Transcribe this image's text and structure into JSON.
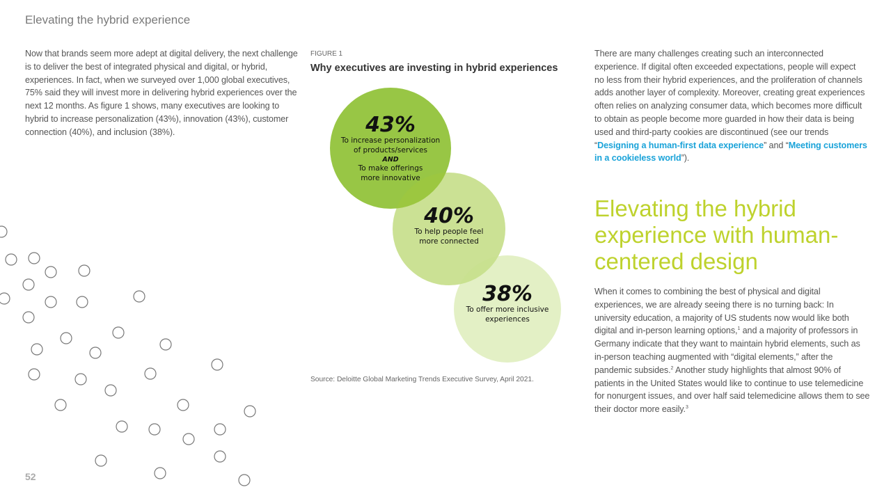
{
  "header": {
    "title": "Elevating the hybrid experience"
  },
  "left_column": {
    "paragraph": "Now that brands seem more adept at digital delivery, the next challenge is to deliver the best of integrated physical and digital, or hybrid, experiences. In fact, when we surveyed over 1,000 global executives, 75% said they will invest more in delivering hybrid experiences over the next 12 months. As figure 1 shows, many executives are looking to hybrid to increase personalization (43%), innovation (43%), customer connection (40%), and inclusion (38%)."
  },
  "figure": {
    "label": "FIGURE 1",
    "title": "Why executives are investing in hybrid experiences",
    "source": "Source: Deloitte Global Marketing Trends Executive Survey, April 2021.",
    "circles": [
      {
        "value": "43%",
        "line1": "To increase personalization",
        "line2": "of products/services",
        "conjunction": "AND",
        "line3": "To make offerings",
        "line4": "more innovative"
      },
      {
        "value": "40%",
        "line1": "To help people feel",
        "line2": "more connected"
      },
      {
        "value": "38%",
        "line1": "To offer more inclusive",
        "line2": "experiences"
      }
    ]
  },
  "chart_data": {
    "type": "bubble",
    "title": "Why executives are investing in hybrid experiences",
    "categories": [
      "To increase personalization of products/services AND To make offerings more innovative",
      "To help people feel more connected",
      "To offer more inclusive experiences"
    ],
    "values": [
      43,
      40,
      38
    ],
    "unit": "%"
  },
  "right_column": {
    "para_start": "There are many challenges creating such an interconnected experience. If digital often exceeded expectations, people will expect no less from their hybrid experiences, and the proliferation of channels adds another layer of complexity. Moreover, creating great experiences often relies on analyzing consumer data, which becomes more difficult to obtain as people become more guarded in how their data is being used and third-party cookies are discontinued (see our trends “",
    "link1": "Designing a human-first data experience",
    "para_mid": "” and “",
    "link2": "Meeting customers in a cookieless world",
    "para_end": "”).",
    "section_heading": "Elevating the hybrid experience with human-centered design",
    "p2_a": "When it comes to combining the best of physical and digital experiences, we are already seeing there is no turning back: In university education, a majority of US students now would like both digital and in-person learning options,",
    "sup1": "1",
    "p2_b": " and a majority of professors in Germany indicate that they want to maintain hybrid elements, such as in-person teaching augmented with “digital elements,” after the pandemic subsides.",
    "sup2": "2",
    "p2_c": " Another study highlights that almost 90% of patients in the United States would like to continue to use telemedicine for nonurgent issues, and over half said telemedicine allows them to see their doctor more easily.",
    "sup3": "3"
  },
  "footer": {
    "page_number": "52"
  },
  "colors": {
    "accent_green": "#86bc25",
    "heading_green": "#bed22d",
    "link_blue": "#1aa3d9"
  }
}
